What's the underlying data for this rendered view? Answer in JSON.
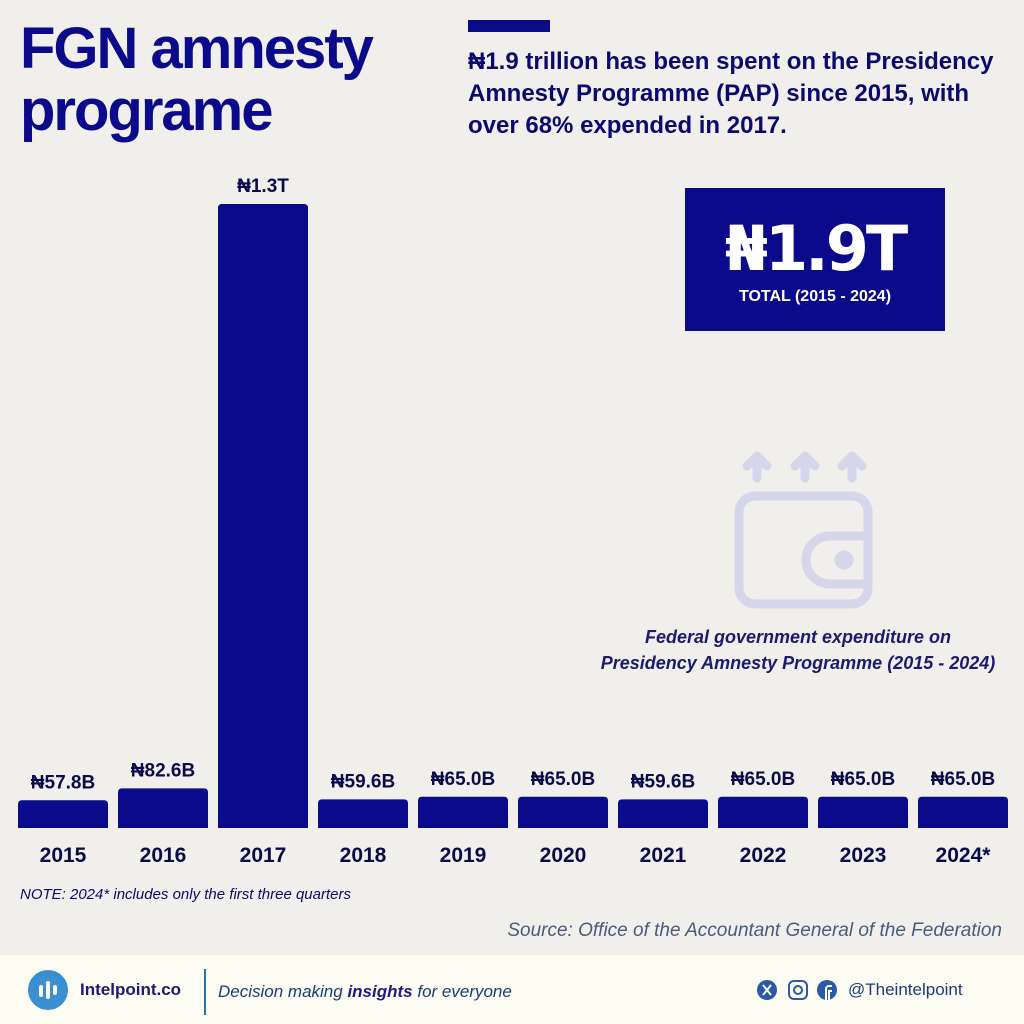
{
  "chart_data": {
    "type": "bar",
    "title": "FGN amnesty programe",
    "subtitle": "₦1.9 trillion has been spent on the Presidency Amnesty Programme (PAP) since 2015, with over 68% expended in 2017.",
    "total": {
      "value": "₦1.9T",
      "label": "TOTAL (2015 - 2024)"
    },
    "caption": "Federal government expenditure on Presidency Amnesty Programme (2015 - 2024)",
    "categories": [
      "2015",
      "2016",
      "2017",
      "2018",
      "2019",
      "2020",
      "2021",
      "2022",
      "2023",
      "2024*"
    ],
    "values": [
      57.8,
      82.6,
      1300,
      59.6,
      65.0,
      65.0,
      59.6,
      65.0,
      65.0,
      65.0
    ],
    "value_labels": [
      "₦57.8B",
      "₦82.6B",
      "₦1.3T",
      "₦59.6B",
      "₦65.0B",
      "₦65.0B",
      "₦59.6B",
      "₦65.0B",
      "₦65.0B",
      "₦65.0B"
    ],
    "color": "#0a0a8a",
    "note": "NOTE: 2024* includes only the first three quarters",
    "source": "Source: Office of the Accountant General of the Federation"
  },
  "footer": {
    "brand": "Intelpoint.co",
    "tagline": [
      "Decision making ",
      "insights",
      " for everyone"
    ],
    "handle": "@Theintelpoint"
  }
}
